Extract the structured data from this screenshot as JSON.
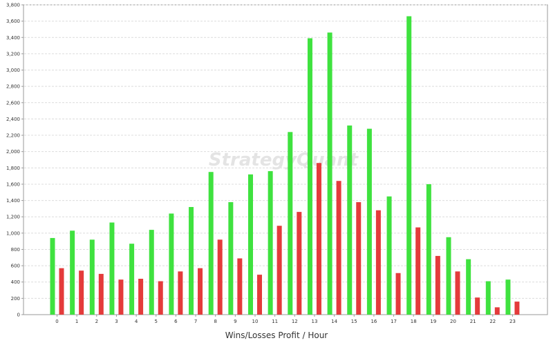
{
  "chart_data": {
    "type": "bar",
    "title": "",
    "xlabel": "Wins/Losses Profit / Hour",
    "ylabel": "",
    "ylim": [
      0,
      3800
    ],
    "yticks": [
      0,
      200,
      400,
      600,
      800,
      1000,
      1200,
      1400,
      1600,
      1800,
      2000,
      2200,
      2400,
      2600,
      2800,
      3000,
      3200,
      3400,
      3600,
      3800
    ],
    "ytick_labels": [
      "0",
      "200",
      "400",
      "600",
      "800",
      "1,000",
      "1,200",
      "1,400",
      "1,600",
      "1,800",
      "2,000",
      "2,200",
      "2,400",
      "2,600",
      "2,800",
      "3,000",
      "3,200",
      "3,400",
      "3,600",
      "3,800"
    ],
    "categories": [
      "0",
      "1",
      "2",
      "3",
      "4",
      "5",
      "6",
      "7",
      "8",
      "9",
      "10",
      "11",
      "12",
      "13",
      "14",
      "15",
      "16",
      "17",
      "18",
      "19",
      "20",
      "21",
      "22",
      "23"
    ],
    "series": [
      {
        "color": "#3fe23f",
        "values": [
          940,
          1030,
          920,
          1130,
          870,
          1040,
          1240,
          1320,
          1750,
          1380,
          1720,
          1760,
          2240,
          3390,
          3460,
          2320,
          2280,
          1450,
          3660,
          1600,
          950,
          680,
          410,
          430
        ]
      },
      {
        "color": "#e43b3b",
        "values": [
          570,
          540,
          500,
          430,
          440,
          410,
          530,
          570,
          920,
          690,
          490,
          1090,
          1260,
          1860,
          1640,
          1380,
          1280,
          510,
          1070,
          720,
          530,
          210,
          90,
          160
        ]
      }
    ],
    "grid": true,
    "watermark": "StrategyQuant"
  }
}
